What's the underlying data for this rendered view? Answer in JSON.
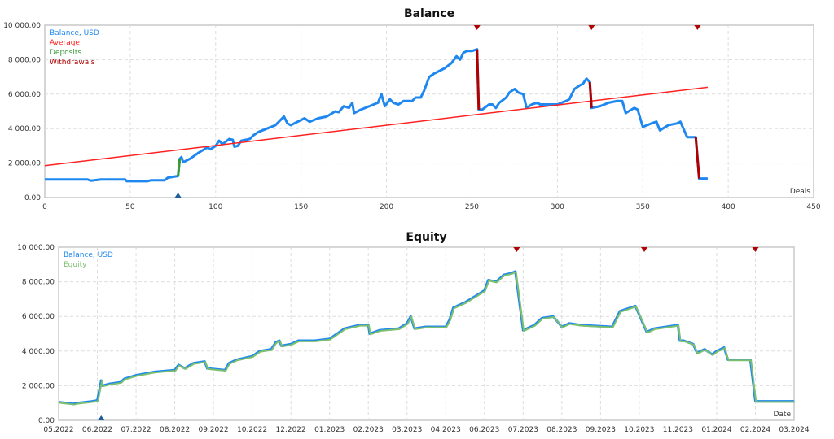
{
  "chart_data": [
    {
      "type": "line",
      "title": "Balance",
      "xlabel": "Deals",
      "xlim": [
        0,
        450
      ],
      "ylim": [
        0,
        10000
      ],
      "x_ticks": [
        "0",
        "50",
        "100",
        "150",
        "200",
        "250",
        "300",
        "350",
        "400",
        "450"
      ],
      "y_ticks": [
        "0.00",
        "2 000.00",
        "4 000.00",
        "6 000.00",
        "8 000.00",
        "10 000.00"
      ],
      "grid": true,
      "legend_position": "top-left",
      "legend": [
        "Balance, USD",
        "Average",
        "Deposits",
        "Withdrawals"
      ],
      "colors": {
        "balance": "#1e88f0",
        "average": "#ff2020",
        "deposits": "#3a9a3a",
        "withdrawals": "#b00000"
      },
      "balance": [
        [
          0,
          1050
        ],
        [
          25,
          1050
        ],
        [
          27,
          980
        ],
        [
          33,
          1050
        ],
        [
          47,
          1050
        ],
        [
          48,
          950
        ],
        [
          60,
          950
        ],
        [
          62,
          1000
        ],
        [
          70,
          1000
        ],
        [
          72,
          1150
        ],
        [
          78,
          1250
        ],
        [
          79,
          2250
        ],
        [
          80,
          2350
        ],
        [
          81,
          2050
        ],
        [
          85,
          2250
        ],
        [
          90,
          2600
        ],
        [
          95,
          2900
        ],
        [
          97,
          2800
        ],
        [
          100,
          3000
        ],
        [
          102,
          3300
        ],
        [
          104,
          3100
        ],
        [
          108,
          3400
        ],
        [
          110,
          3350
        ],
        [
          111,
          2950
        ],
        [
          113,
          3000
        ],
        [
          115,
          3300
        ],
        [
          120,
          3400
        ],
        [
          122,
          3600
        ],
        [
          125,
          3800
        ],
        [
          130,
          4000
        ],
        [
          135,
          4200
        ],
        [
          137,
          4400
        ],
        [
          140,
          4700
        ],
        [
          142,
          4300
        ],
        [
          144,
          4200
        ],
        [
          146,
          4300
        ],
        [
          150,
          4500
        ],
        [
          152,
          4600
        ],
        [
          155,
          4400
        ],
        [
          160,
          4600
        ],
        [
          165,
          4700
        ],
        [
          170,
          5000
        ],
        [
          172,
          4950
        ],
        [
          175,
          5300
        ],
        [
          178,
          5200
        ],
        [
          180,
          5500
        ],
        [
          181,
          4900
        ],
        [
          185,
          5100
        ],
        [
          190,
          5300
        ],
        [
          195,
          5500
        ],
        [
          197,
          6000
        ],
        [
          199,
          5300
        ],
        [
          202,
          5700
        ],
        [
          204,
          5500
        ],
        [
          207,
          5400
        ],
        [
          210,
          5600
        ],
        [
          215,
          5600
        ],
        [
          217,
          5800
        ],
        [
          220,
          5800
        ],
        [
          222,
          6200
        ],
        [
          225,
          7000
        ],
        [
          228,
          7200
        ],
        [
          232,
          7400
        ],
        [
          234,
          7500
        ],
        [
          238,
          7800
        ],
        [
          241,
          8200
        ],
        [
          243,
          8000
        ],
        [
          245,
          8400
        ],
        [
          247,
          8500
        ],
        [
          250,
          8500
        ],
        [
          253,
          8600
        ],
        [
          254,
          5100
        ],
        [
          256,
          5100
        ],
        [
          260,
          5400
        ],
        [
          262,
          5400
        ],
        [
          264,
          5200
        ],
        [
          266,
          5500
        ],
        [
          270,
          5800
        ],
        [
          272,
          6100
        ],
        [
          275,
          6300
        ],
        [
          277,
          6100
        ],
        [
          280,
          6000
        ],
        [
          282,
          5200
        ],
        [
          285,
          5400
        ],
        [
          288,
          5500
        ],
        [
          290,
          5400
        ],
        [
          300,
          5400
        ],
        [
          305,
          5600
        ],
        [
          307,
          5700
        ],
        [
          310,
          6300
        ],
        [
          313,
          6500
        ],
        [
          315,
          6600
        ],
        [
          317,
          6900
        ],
        [
          319,
          6700
        ],
        [
          320,
          5200
        ],
        [
          325,
          5300
        ],
        [
          330,
          5500
        ],
        [
          335,
          5600
        ],
        [
          338,
          5600
        ],
        [
          340,
          4900
        ],
        [
          345,
          5200
        ],
        [
          347,
          5100
        ],
        [
          350,
          4100
        ],
        [
          355,
          4300
        ],
        [
          358,
          4400
        ],
        [
          360,
          3900
        ],
        [
          365,
          4200
        ],
        [
          370,
          4300
        ],
        [
          372,
          4400
        ],
        [
          376,
          3500
        ],
        [
          380,
          3500
        ],
        [
          381,
          3500
        ],
        [
          383,
          1100
        ],
        [
          388,
          1100
        ]
      ],
      "deposits": [
        [
          78,
          1250,
          79,
          2250
        ]
      ],
      "withdrawals": [
        [
          253,
          8600,
          254,
          5100
        ],
        [
          319,
          6700,
          320,
          5200
        ],
        [
          381,
          3500,
          383,
          1100
        ]
      ],
      "average": [
        [
          0,
          1850
        ],
        [
          388,
          6400
        ]
      ],
      "deposit_markers": [
        78
      ],
      "withdrawal_markers": [
        253,
        320,
        382
      ]
    },
    {
      "type": "line",
      "title": "Equity",
      "xlabel": "Date",
      "ylim": [
        0,
        10000
      ],
      "x_ticks": [
        "05.2022",
        "06.2022",
        "07.2022",
        "08.2022",
        "09.2022",
        "10.2022",
        "12.2022",
        "01.2023",
        "02.2023",
        "03.2023",
        "04.2023",
        "06.2023",
        "07.2023",
        "08.2023",
        "09.2023",
        "10.2023",
        "11.2023",
        "01.2024",
        "02.2024",
        "03.2024"
      ],
      "y_ticks": [
        "0.00",
        "2 000.00",
        "4 000.00",
        "6 000.00",
        "8 000.00",
        "10 000.00"
      ],
      "grid": true,
      "legend_position": "top-left",
      "legend": [
        "Balance, USD",
        "Equity"
      ],
      "colors": {
        "balance": "#1e88f0",
        "equity": "#7cbf6e"
      },
      "dates": [
        "2022-05-01",
        "2022-05-13",
        "2022-05-16",
        "2022-05-28",
        "2022-06-01",
        "2022-06-04",
        "2022-06-05",
        "2022-06-10",
        "2022-06-19",
        "2022-06-22",
        "2022-07-01",
        "2022-07-16",
        "2022-08-01",
        "2022-08-04",
        "2022-08-09",
        "2022-08-16",
        "2022-08-25",
        "2022-08-27",
        "2022-09-10",
        "2022-09-13",
        "2022-09-19",
        "2022-10-01",
        "2022-10-13",
        "2022-10-31",
        "2022-11-07",
        "2022-11-13",
        "2022-11-16",
        "2022-12-01",
        "2022-12-07",
        "2022-12-20",
        "2023-01-01",
        "2023-01-07",
        "2023-01-13",
        "2023-01-19",
        "2023-01-25",
        "2023-02-01",
        "2023-02-02",
        "2023-02-09",
        "2023-02-23",
        "2023-03-01",
        "2023-03-04",
        "2023-03-07",
        "2023-03-16",
        "2023-04-01",
        "2023-04-07",
        "2023-04-13",
        "2023-05-01",
        "2023-05-19",
        "2023-06-01",
        "2023-06-04",
        "2023-06-10",
        "2023-06-16",
        "2023-06-22",
        "2023-06-25",
        "2023-07-01",
        "2023-07-04",
        "2023-07-10",
        "2023-07-16",
        "2023-07-25",
        "2023-08-01",
        "2023-08-07",
        "2023-08-16",
        "2023-09-10",
        "2023-09-16",
        "2023-09-28",
        "2023-10-07",
        "2023-10-13",
        "2023-11-01",
        "2023-11-04",
        "2023-11-10",
        "2023-11-25",
        "2023-12-01",
        "2023-12-13",
        "2023-12-25",
        "2024-01-01",
        "2024-01-07",
        "2024-01-10",
        "2024-01-28",
        "2024-02-01",
        "2024-03-01"
      ],
      "balance": [
        1050,
        950,
        1000,
        1100,
        1150,
        2300,
        2000,
        2100,
        2200,
        2400,
        2600,
        2800,
        2900,
        3200,
        3000,
        3300,
        3400,
        3000,
        2900,
        3300,
        3500,
        3700,
        4000,
        4100,
        4500,
        4600,
        4300,
        4400,
        4600,
        4600,
        4700,
        5000,
        5300,
        5400,
        5500,
        5500,
        5000,
        5200,
        5300,
        5600,
        6000,
        5300,
        5400,
        5400,
        5800,
        6500,
        6800,
        7200,
        7500,
        8100,
        8000,
        8400,
        8500,
        8600,
        5200,
        5300,
        5500,
        5900,
        6000,
        5400,
        5600,
        5500,
        5400,
        6300,
        6600,
        5100,
        5300,
        5500,
        4600,
        4600,
        4400,
        3900,
        4100,
        3800,
        4000,
        4200,
        3500,
        3500,
        1100,
        1100
      ],
      "equity": [
        1050,
        950,
        1000,
        1100,
        1150,
        2300,
        2000,
        2100,
        2200,
        2400,
        2600,
        2800,
        2900,
        3200,
        3000,
        3300,
        3400,
        3000,
        2900,
        3300,
        3500,
        3700,
        4000,
        4100,
        4500,
        4600,
        4300,
        4400,
        4600,
        4600,
        4700,
        5000,
        5300,
        5400,
        5500,
        5500,
        5000,
        5200,
        5300,
        5600,
        6000,
        5300,
        5400,
        5400,
        5800,
        6500,
        6800,
        7200,
        7500,
        8100,
        8000,
        8400,
        8500,
        8600,
        5200,
        5300,
        5500,
        5900,
        6000,
        5400,
        5600,
        5500,
        5400,
        6300,
        6600,
        5100,
        5300,
        5500,
        4600,
        4600,
        4400,
        3900,
        4100,
        3800,
        4000,
        4200,
        3500,
        3500,
        1100,
        1100
      ],
      "deposit_markers": [
        "2022-06-04"
      ],
      "withdrawal_markers": [
        "2023-06-26",
        "2023-10-05",
        "2024-02-01"
      ]
    }
  ]
}
